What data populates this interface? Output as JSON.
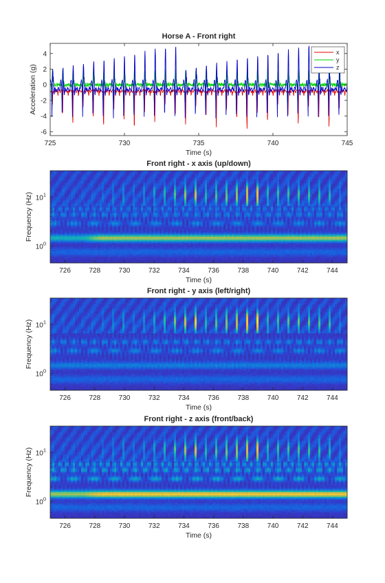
{
  "chart_data": [
    {
      "type": "line",
      "title": "Horse A - Front right",
      "xlabel": "Time (s)",
      "ylabel": "Acceleration (g)",
      "xlim": [
        725,
        745
      ],
      "ylim": [
        -6.5,
        5.3
      ],
      "xticks": [
        725,
        730,
        735,
        740,
        745
      ],
      "yticks": [
        -6,
        -4,
        -2,
        0,
        2,
        4
      ],
      "legend_position": "top-right",
      "grid": false,
      "stride_period_s": 0.69,
      "series": [
        {
          "name": "x",
          "color": "#e00000",
          "baseline": -0.8,
          "trough": [
            -2.5,
            -6.2
          ],
          "peak": 0.3
        },
        {
          "name": "y",
          "color": "#00d000",
          "baseline": 0.0,
          "trough": [
            -1.8,
            -2.4
          ],
          "peak": [
            1.5,
            2.3
          ]
        },
        {
          "name": "z",
          "color": "#0000c8",
          "baseline": -0.6,
          "trough": [
            -3.0,
            -4.6
          ],
          "peak": [
            2.0,
            5.3
          ]
        }
      ]
    },
    {
      "type": "heatmap",
      "title": "Front right - x axis (up/down)",
      "xlabel": "Time (s)",
      "ylabel": "Frequency (Hz)",
      "xlim": [
        725,
        745
      ],
      "ylog": true,
      "ylim": [
        0.45,
        35
      ],
      "xticks": [
        726,
        728,
        730,
        732,
        734,
        736,
        738,
        740,
        742,
        744
      ],
      "yticks": [
        1,
        10
      ],
      "ytick_labels": [
        "10^0",
        "10^1"
      ],
      "colormap": "parula",
      "features": {
        "stride_band_hz": 1.45,
        "harmonic_hz": [
          2.9,
          4.4,
          5.8
        ],
        "bursts_hz": [
          8,
          30
        ]
      }
    },
    {
      "type": "heatmap",
      "title": "Front right - y axis (left/right)",
      "xlabel": "Time (s)",
      "ylabel": "Frequency (Hz)",
      "xlim": [
        725,
        745
      ],
      "ylog": true,
      "ylim": [
        0.45,
        35
      ],
      "xticks": [
        726,
        728,
        730,
        732,
        734,
        736,
        738,
        740,
        742,
        744
      ],
      "yticks": [
        1,
        10
      ],
      "ytick_labels": [
        "10^0",
        "10^1"
      ],
      "colormap": "parula",
      "features": {
        "stride_band_hz": 1.45,
        "harmonic_hz": [
          2.9,
          4.4
        ],
        "bursts_hz": [
          8,
          30
        ]
      }
    },
    {
      "type": "heatmap",
      "title": "Front right - z axis (front/back)",
      "xlabel": "Time (s)",
      "ylabel": "Frequency (Hz)",
      "xlim": [
        725,
        745
      ],
      "ylog": true,
      "ylim": [
        0.45,
        35
      ],
      "xticks": [
        726,
        728,
        730,
        732,
        734,
        736,
        738,
        740,
        742,
        744
      ],
      "yticks": [
        1,
        10
      ],
      "ytick_labels": [
        "10^0",
        "10^1"
      ],
      "colormap": "parula",
      "features": {
        "stride_band_hz": 1.4,
        "harmonic_hz": [
          2.9,
          4.4,
          5.8
        ],
        "bursts_hz": [
          8,
          30
        ]
      }
    }
  ]
}
